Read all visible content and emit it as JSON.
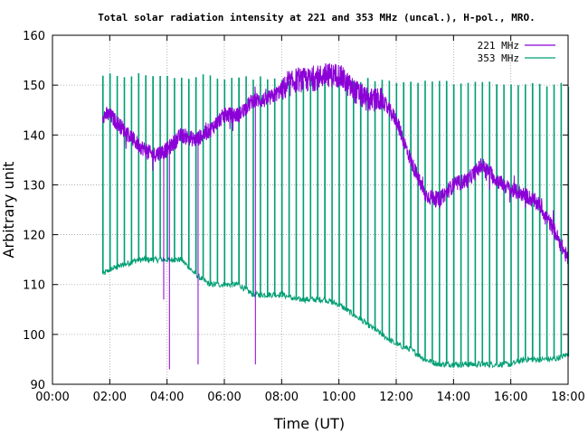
{
  "chart_data": {
    "type": "line",
    "title": "Total solar radiation intensity at 221 and 353 MHz (uncal.), H-pol., MRO.",
    "xlabel": "Time (UT)",
    "ylabel": "Arbitrary unit",
    "xlim": [
      "00:00",
      "18:00"
    ],
    "ylim": [
      90,
      160
    ],
    "x_ticks": [
      "00:00",
      "02:00",
      "04:00",
      "06:00",
      "08:00",
      "10:00",
      "12:00",
      "14:00",
      "16:00",
      "18:00"
    ],
    "y_ticks": [
      "90",
      "100",
      "110",
      "120",
      "130",
      "140",
      "150",
      "160"
    ],
    "grid": true,
    "legend_position": "top-right",
    "series": [
      {
        "name": "221 MHz",
        "color": "#8b00d6",
        "x": [
          "01:45",
          "02:00",
          "02:30",
          "03:00",
          "03:30",
          "04:00",
          "04:30",
          "05:00",
          "05:30",
          "06:00",
          "06:30",
          "07:00",
          "07:30",
          "08:00",
          "08:30",
          "09:00",
          "09:30",
          "10:00",
          "10:30",
          "11:00",
          "11:30",
          "12:00",
          "12:30",
          "13:00",
          "13:30",
          "14:00",
          "14:30",
          "15:00",
          "15:30",
          "16:00",
          "16:30",
          "17:00",
          "17:30",
          "18:00"
        ],
        "values": [
          144,
          144,
          141,
          138,
          136,
          137,
          140,
          139,
          141,
          144,
          144,
          147,
          147,
          149,
          151,
          151,
          152,
          152,
          149,
          147,
          147,
          143,
          135,
          128,
          127,
          130,
          131,
          134,
          131,
          129,
          128,
          126,
          121,
          115
        ],
        "dips": [
          {
            "x": "03:53",
            "value": 107
          },
          {
            "x": "04:05",
            "value": 93
          },
          {
            "x": "05:05",
            "value": 94
          },
          {
            "x": "07:05",
            "value": 94
          }
        ]
      },
      {
        "name": "353 MHz",
        "color": "#009e73",
        "x": [
          "01:45",
          "02:00",
          "02:30",
          "03:00",
          "03:30",
          "04:00",
          "04:30",
          "05:00",
          "05:30",
          "06:00",
          "06:30",
          "07:00",
          "07:30",
          "08:00",
          "08:30",
          "09:00",
          "09:30",
          "10:00",
          "10:30",
          "11:00",
          "11:30",
          "12:00",
          "12:30",
          "13:00",
          "13:30",
          "14:00",
          "14:30",
          "15:00",
          "15:30",
          "16:00",
          "16:30",
          "17:00",
          "17:30",
          "18:00"
        ],
        "values": [
          112,
          113,
          114,
          115,
          115,
          115,
          115,
          112,
          110,
          110,
          110,
          108,
          108,
          108,
          107,
          107,
          107,
          106,
          104,
          102,
          100,
          98,
          97,
          95,
          94,
          94,
          94,
          94,
          94,
          94,
          95,
          95,
          95,
          96
        ],
        "spikes": {
          "interval_minutes": 15,
          "start": "01:45",
          "end": "18:00",
          "peak_early": 152,
          "peak_late": 150
        }
      }
    ]
  }
}
